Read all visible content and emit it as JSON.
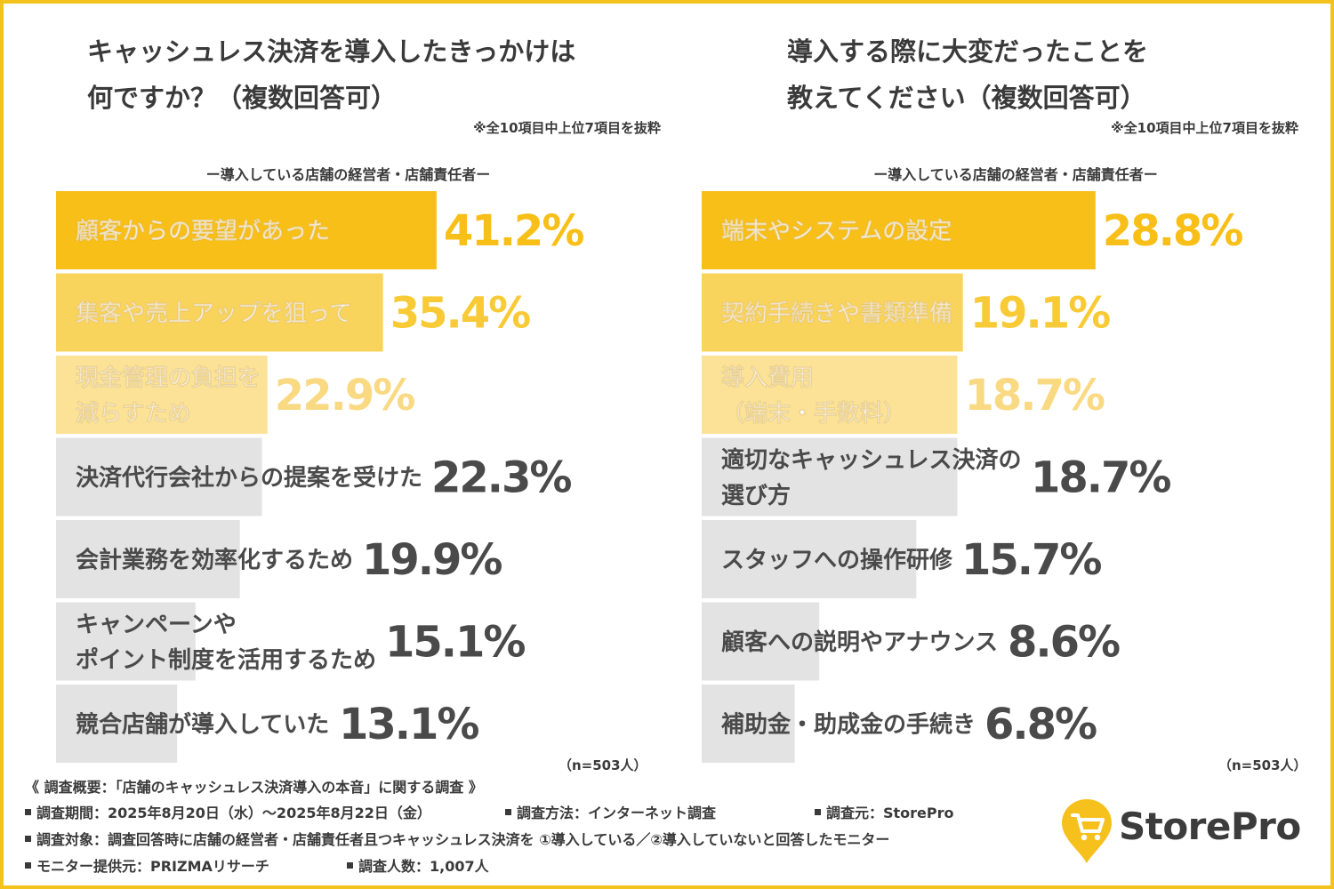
{
  "chart_data": [
    {
      "type": "bar",
      "orientation": "horizontal",
      "title_lines": [
        "キャッシュレス決済を導入したきっかけは",
        "何ですか？（複数回答可）"
      ],
      "note": "※全10項目中上位7項目を抜粋",
      "subtitle": "ー導入している店舗の経営者・店舗責任者ー",
      "sample_note": "（n=503人）",
      "value_suffix": "%",
      "categories": [
        [
          "顧客からの要望があった"
        ],
        [
          "集客や売上アップを狙って"
        ],
        [
          "現金管理の負担を",
          "減らすため"
        ],
        [
          "決済代行会社からの提案を受けた"
        ],
        [
          "会計業務を効率化するため"
        ],
        [
          "キャンペーンや",
          "ポイント制度を活用するため"
        ],
        [
          "競合店舗が導入していた"
        ]
      ],
      "values": [
        41.2,
        35.4,
        22.9,
        22.3,
        19.9,
        15.1,
        13.1
      ],
      "value_labels": [
        "41.2%",
        "35.4%",
        "22.9%",
        "22.3%",
        "19.9%",
        "15.1%",
        "13.1%"
      ],
      "xlim": [
        0,
        57
      ]
    },
    {
      "type": "bar",
      "orientation": "horizontal",
      "title_lines": [
        "導入する際に大変だったことを",
        "教えてください（複数回答可）"
      ],
      "note": "※全10項目中上位7項目を抜粋",
      "subtitle": "ー導入している店舗の経営者・店舗責任者ー",
      "sample_note": "（n=503人）",
      "value_suffix": "%",
      "categories": [
        [
          "端末やシステムの設定"
        ],
        [
          "契約手続きや書類準備"
        ],
        [
          "導入費用",
          "（端末・手数料）"
        ],
        [
          "適切なキャッシュレス決済の",
          "選び方"
        ],
        [
          "スタッフへの操作研修"
        ],
        [
          "顧客への説明やアナウンス"
        ],
        [
          "補助金・助成金の手続き"
        ]
      ],
      "values": [
        28.8,
        19.1,
        18.7,
        18.7,
        15.7,
        8.6,
        6.8
      ],
      "value_labels": [
        "28.8%",
        "19.1%",
        "18.7%",
        "18.7%",
        "15.7%",
        "8.6%",
        "6.8%"
      ],
      "xlim": [
        0,
        38.5
      ]
    }
  ],
  "colors": {
    "rank1": "#f7bf17",
    "rank2": "#f9d45c",
    "rank3": "#fbe296",
    "other": "#e3e3e3",
    "rank1_text": "#f7bf17",
    "rank2_text": "#f8ca35",
    "rank3_text": "#fad983",
    "other_text": "#4a4a4a",
    "frame": "#f4c21c"
  },
  "survey": {
    "title": "《 調査概要：「店舗のキャッシュレス決済導入の本音」に関する調査 》",
    "period": "調査期間：2025年8月20日（水）～2025年8月22日（金）",
    "method": "調査方法：インターネット調査",
    "source": "調査元：StorePro",
    "target": "調査対象：調査回答時に店舗の経営者・店舗責任者且つキャッシュレス決済を ①導入している／②導入していないと回答したモニター",
    "provider": "モニター提供元：PRIZMAリサーチ",
    "count": "調査人数：1,007人"
  },
  "logo": {
    "text": "StorePro",
    "icon": "shopping-cart-pin-icon"
  }
}
